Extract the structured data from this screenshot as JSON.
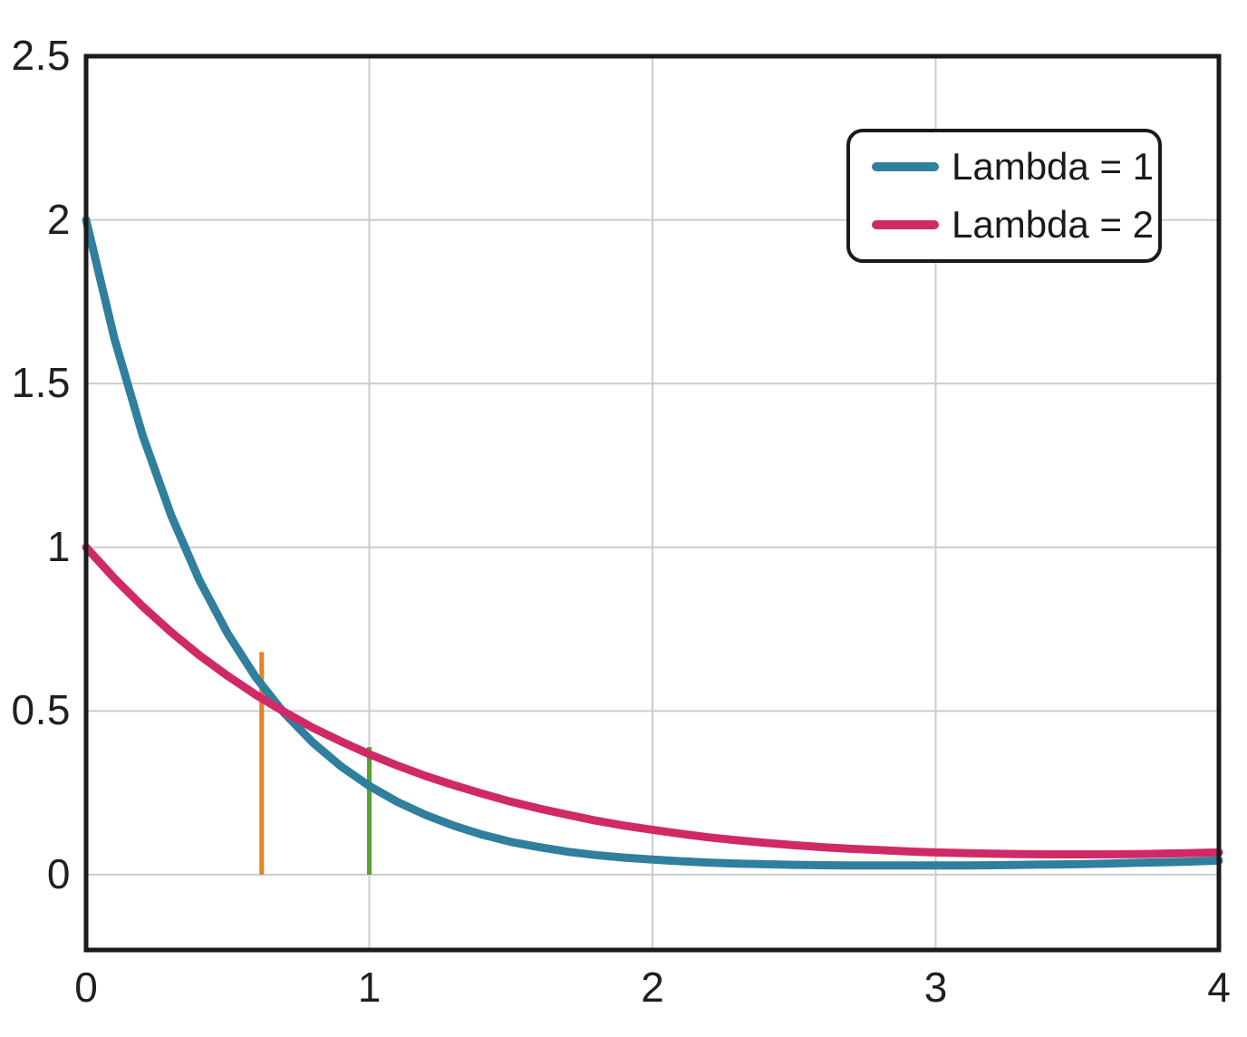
{
  "chart_data": {
    "type": "line",
    "title": "",
    "xlabel": "",
    "ylabel": "",
    "xlim": [
      0,
      4
    ],
    "ylim": [
      -0.23,
      2.5
    ],
    "x_ticks": [
      "0",
      "1",
      "2",
      "3",
      "4"
    ],
    "x_tick_values": [
      0,
      1,
      2,
      3,
      4
    ],
    "y_ticks": [
      "0",
      "0.5",
      "1",
      "1.5",
      "2",
      "2.5"
    ],
    "y_tick_values": [
      0,
      0.5,
      1,
      1.5,
      2,
      2.5
    ],
    "grid": true,
    "legend_position": "top-right",
    "x": [
      0,
      0.1,
      0.2,
      0.3,
      0.4,
      0.5,
      0.6,
      0.7,
      0.8,
      0.9,
      1,
      1.1,
      1.2,
      1.3,
      1.4,
      1.5,
      1.6,
      1.7,
      1.8,
      1.9,
      2,
      2.1,
      2.2,
      2.3,
      2.4,
      2.5,
      2.6,
      2.7,
      2.8,
      2.9,
      3,
      3.1,
      3.2,
      3.3,
      3.4,
      3.5,
      3.6,
      3.7,
      3.8,
      3.9,
      4
    ],
    "series": [
      {
        "name": "Lambda = 1",
        "color": "#2f7f9d",
        "values": [
          2,
          1.637,
          1.341,
          1.098,
          0.899,
          0.736,
          0.602,
          0.493,
          0.404,
          0.331,
          0.271,
          0.222,
          0.182,
          0.149,
          0.122,
          0.1,
          0.084,
          0.07,
          0.06,
          0.052,
          0.046,
          0.041,
          0.037,
          0.034,
          0.032,
          0.03,
          0.029,
          0.028,
          0.028,
          0.028,
          0.028,
          0.028,
          0.029,
          0.03,
          0.031,
          0.032,
          0.034,
          0.036,
          0.038,
          0.04,
          0.043
        ]
      },
      {
        "name": "Lambda = 2",
        "color": "#d02a66",
        "values": [
          1,
          0.905,
          0.819,
          0.741,
          0.67,
          0.607,
          0.549,
          0.497,
          0.449,
          0.407,
          0.368,
          0.333,
          0.301,
          0.273,
          0.247,
          0.223,
          0.202,
          0.183,
          0.165,
          0.15,
          0.137,
          0.125,
          0.114,
          0.105,
          0.097,
          0.09,
          0.084,
          0.079,
          0.075,
          0.071,
          0.068,
          0.066,
          0.064,
          0.063,
          0.062,
          0.062,
          0.062,
          0.063,
          0.064,
          0.066,
          0.068
        ]
      }
    ],
    "marker_lines": [
      {
        "name": "orange-marker-line",
        "color": "#e87f23",
        "x": 0.62,
        "y0": 0,
        "y1": 0.68
      },
      {
        "name": "green-marker-line",
        "color": "#55a02f",
        "x": 1.0,
        "y0": 0,
        "y1": 0.39
      }
    ],
    "colors": {
      "grid": "#cccccc",
      "frame": "#1a1a1a",
      "background": "#ffffff",
      "tick_text": "#1f1f1f"
    }
  }
}
